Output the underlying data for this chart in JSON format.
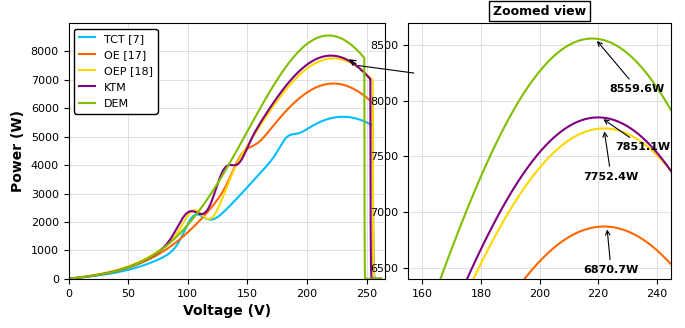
{
  "main_xlim": [
    0,
    265
  ],
  "main_ylim": [
    0,
    9000
  ],
  "main_xticks": [
    0,
    50,
    100,
    150,
    200,
    250
  ],
  "main_yticks": [
    0,
    1000,
    2000,
    3000,
    4000,
    5000,
    6000,
    7000,
    8000
  ],
  "zoom_xlim": [
    155,
    245
  ],
  "zoom_ylim": [
    6400,
    8700
  ],
  "zoom_xticks": [
    160,
    180,
    200,
    220,
    240
  ],
  "zoom_yticks": [
    6500,
    7000,
    7500,
    8000,
    8500
  ],
  "xlabel": "Voltage (V)",
  "ylabel": "Power (W)",
  "zoom_title": "Zoomed view",
  "colors": {
    "TCT": "#00BFFF",
    "OE": "#FF6600",
    "OEP": "#FFD700",
    "KTM": "#800080",
    "DEM": "#7FBF00"
  },
  "legend_labels": [
    "TCT [7]",
    "OE [17]",
    "OEP [18]",
    "KTM",
    "DEM"
  ],
  "peak_labels": [
    "8559.6W",
    "7851.1W",
    "7752.4W",
    "6870.7W"
  ],
  "background_color": "#FFFFFF",
  "grid_color": "#D3D3D3"
}
